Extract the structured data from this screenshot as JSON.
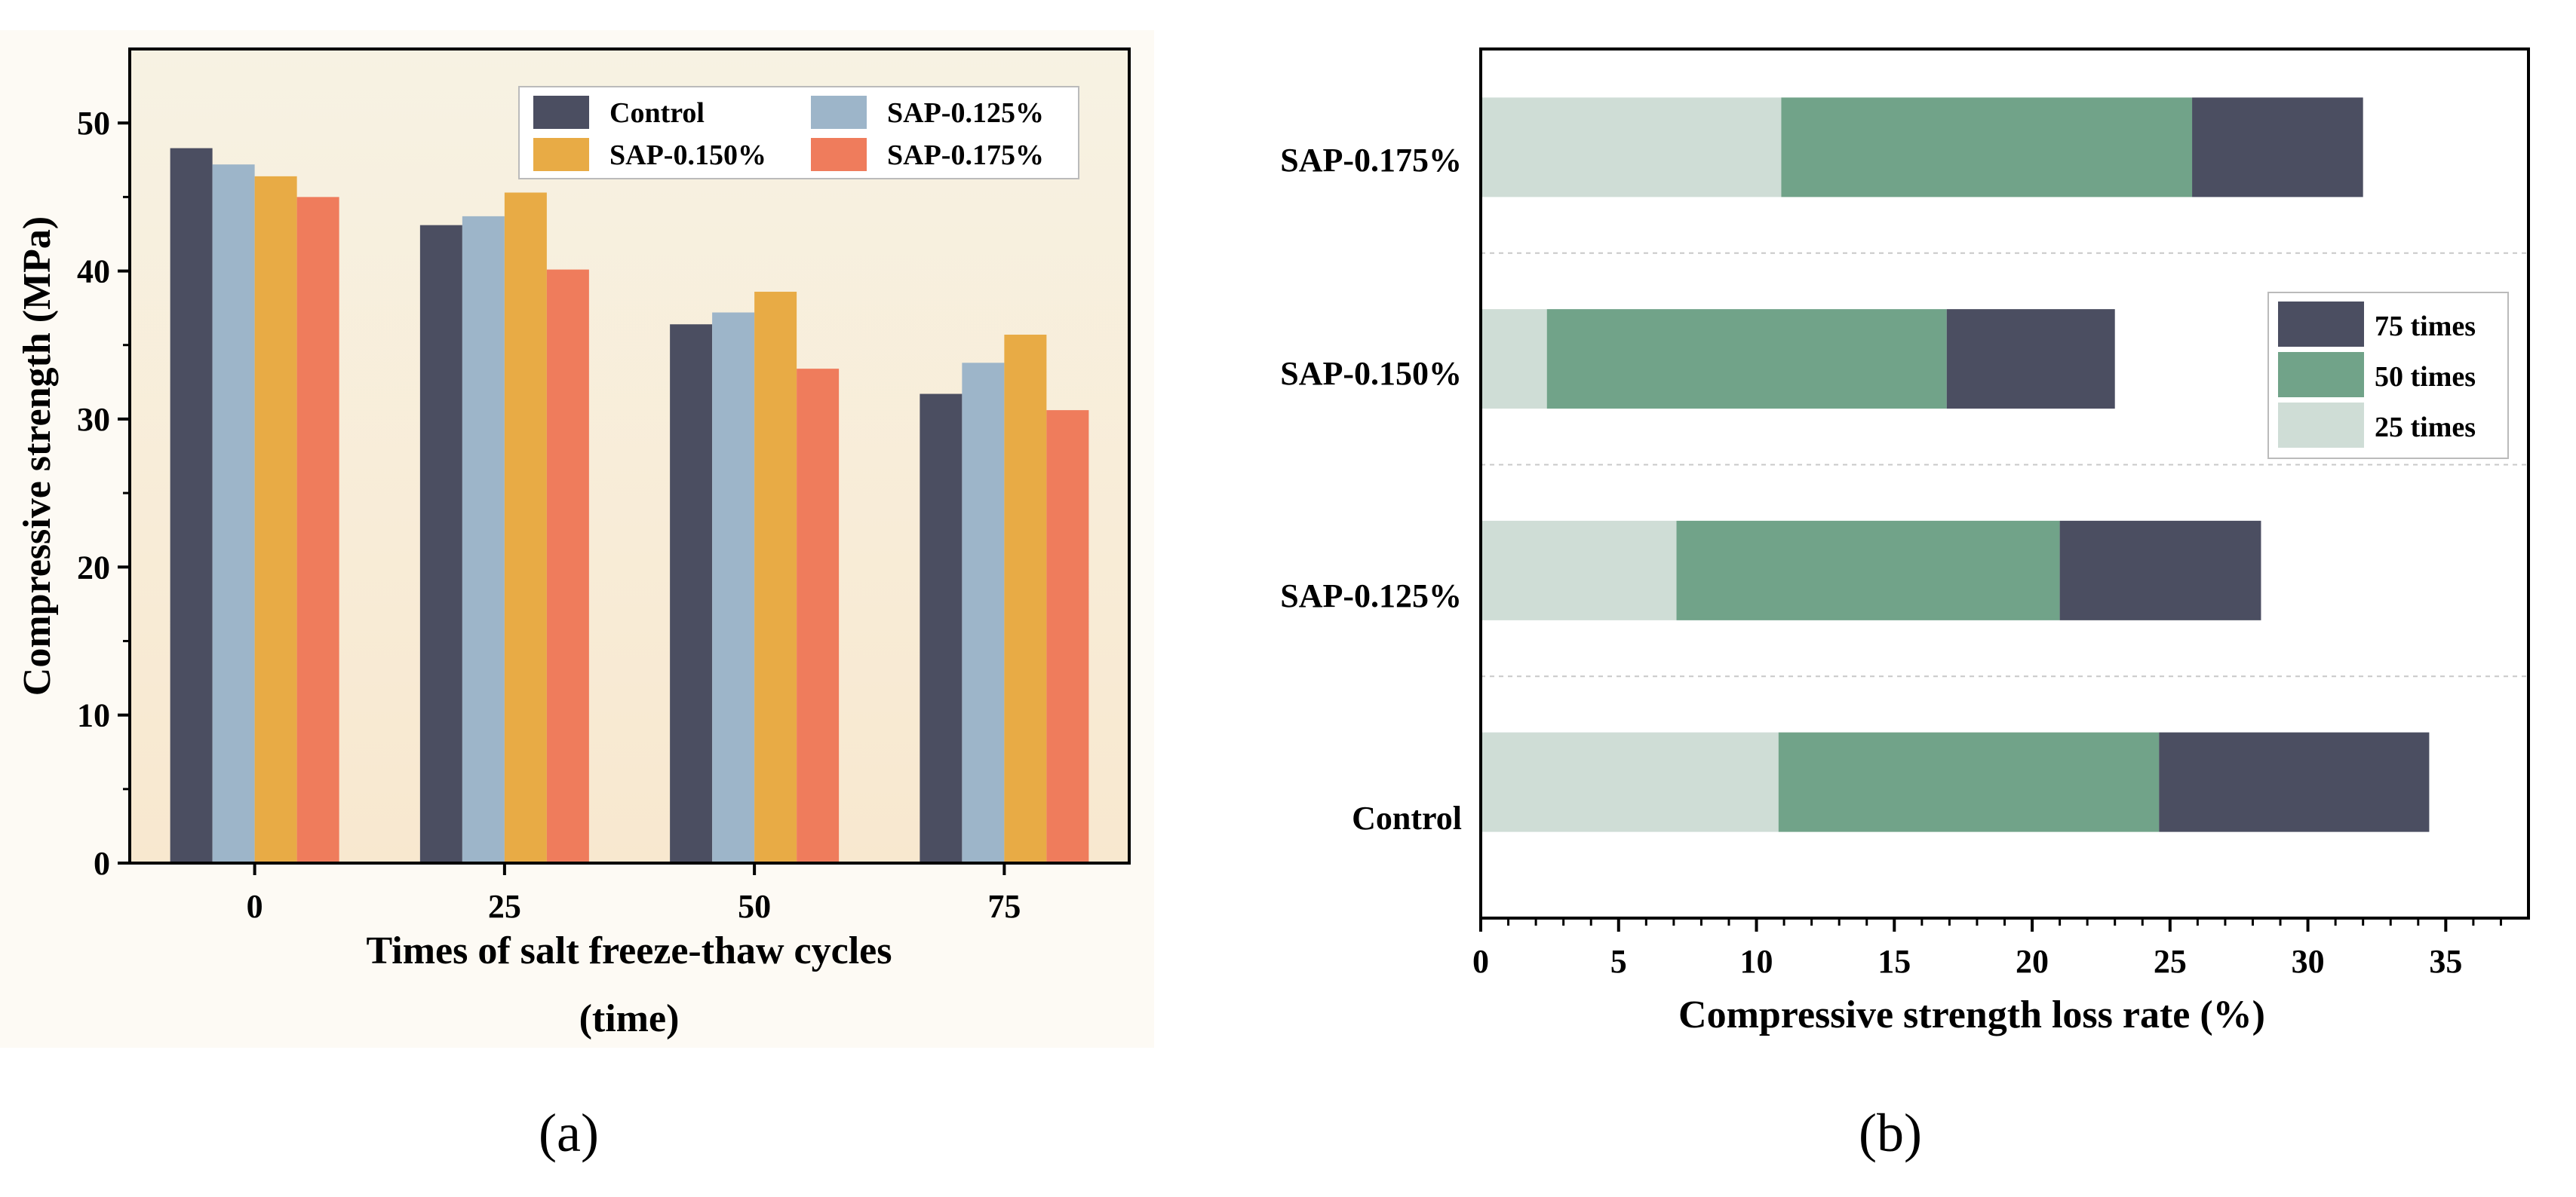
{
  "chart_data": [
    {
      "type": "bar",
      "panel_label": "(a)",
      "categories": [
        "0",
        "25",
        "50",
        "75"
      ],
      "series": [
        {
          "name": "Control",
          "color": "#4b4e61",
          "values": [
            48.3,
            43.1,
            36.4,
            31.7
          ]
        },
        {
          "name": "SAP-0.125%",
          "color": "#9db5c9",
          "values": [
            47.2,
            43.7,
            37.2,
            33.8
          ]
        },
        {
          "name": "SAP-0.150%",
          "color": "#e8ab45",
          "values": [
            46.4,
            45.3,
            38.6,
            35.7
          ]
        },
        {
          "name": "SAP-0.175%",
          "color": "#ef7c5c",
          "values": [
            45.0,
            40.1,
            33.4,
            30.6
          ]
        }
      ],
      "xlabel": "Times of salt freeze-thaw cycles",
      "xlabel2": "(time)",
      "ylabel": "Compressive strength (MPa)",
      "ylim": [
        0,
        55
      ],
      "yticks": [
        "0",
        "10",
        "20",
        "30",
        "40",
        "50"
      ],
      "legend_position": "top-right"
    },
    {
      "type": "bar",
      "orientation": "horizontal",
      "stacked": true,
      "panel_label": "(b)",
      "categories": [
        "Control",
        "SAP-0.125%",
        "SAP-0.150%",
        "SAP-0.175%"
      ],
      "series": [
        {
          "name": "25 times",
          "color": "#cfddd6",
          "values": [
            10.8,
            7.1,
            2.4,
            10.9
          ]
        },
        {
          "name": "50 times",
          "color": "#71a389",
          "values": [
            13.8,
            13.9,
            14.5,
            14.9
          ]
        },
        {
          "name": "75 times",
          "color": "#4b4e61",
          "values": [
            9.8,
            7.3,
            6.1,
            6.2
          ]
        }
      ],
      "xlabel": "Compressive strength loss rate (%)",
      "xlim": [
        0,
        38
      ],
      "xticks": [
        "0",
        "5",
        "10",
        "15",
        "20",
        "25",
        "30",
        "35"
      ],
      "legend_position": "right",
      "legend_order": [
        "75 times",
        "50 times",
        "25 times"
      ]
    }
  ]
}
